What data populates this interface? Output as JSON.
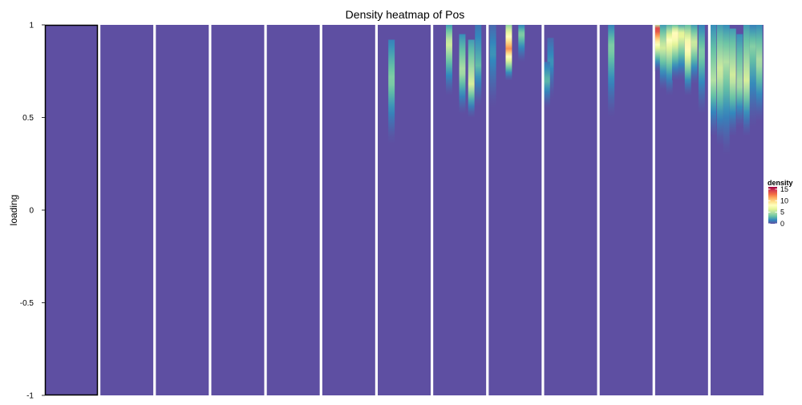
{
  "chart_data": {
    "type": "heatmap",
    "title": "Density heatmap of Pos",
    "xlabel": "",
    "ylabel": "loading",
    "ylim": [
      -1,
      1
    ],
    "y_ticks": [
      {
        "value": 1,
        "label": "1"
      },
      {
        "value": 0.5,
        "label": "0.5"
      },
      {
        "value": 0,
        "label": "0"
      },
      {
        "value": -0.5,
        "label": "-0.5"
      },
      {
        "value": -1,
        "label": "-1"
      }
    ],
    "panel_count": 13,
    "first_panel_outlined": true,
    "background_density": 0,
    "colorscale": [
      "#5E4FA2",
      "#3288BD",
      "#66C2A5",
      "#ABDDA4",
      "#E6F598",
      "#FFFFBF",
      "#FEE08B",
      "#FDAE61",
      "#F46D43",
      "#D53E4F",
      "#9E0142"
    ],
    "legend": {
      "title": "density",
      "position": "right",
      "range": [
        0,
        16
      ],
      "ticks": [
        {
          "value": 0,
          "label": "0"
        },
        {
          "value": 5,
          "label": "5"
        },
        {
          "value": 10,
          "label": "10"
        },
        {
          "value": 15,
          "label": "15"
        }
      ]
    },
    "panels": [
      {
        "index": 1,
        "hotspots": []
      },
      {
        "index": 2,
        "hotspots": []
      },
      {
        "index": 3,
        "hotspots": []
      },
      {
        "index": 4,
        "hotspots": []
      },
      {
        "index": 5,
        "hotspots": []
      },
      {
        "index": 6,
        "hotspots": []
      },
      {
        "index": 7,
        "hotspots": [
          {
            "pos": 0.26,
            "y_top": 0.92,
            "y_bottom": 0.36,
            "peak_y": 0.7,
            "peak": 4
          }
        ]
      },
      {
        "index": 8,
        "hotspots": [
          {
            "pos": 0.3,
            "y_top": 1.0,
            "y_bottom": 0.62,
            "peak_y": 0.9,
            "peak": 6
          },
          {
            "pos": 0.55,
            "y_top": 0.95,
            "y_bottom": 0.52,
            "peak_y": 0.75,
            "peak": 5
          },
          {
            "pos": 0.72,
            "y_top": 0.92,
            "y_bottom": 0.5,
            "peak_y": 0.68,
            "peak": 6
          },
          {
            "pos": 0.85,
            "y_top": 1.0,
            "y_bottom": 0.56,
            "peak_y": 0.78,
            "peak": 3
          }
        ]
      },
      {
        "index": 9,
        "hotspots": [
          {
            "pos": 0.08,
            "y_top": 1.0,
            "y_bottom": 0.55,
            "peak_y": 0.85,
            "peak": 2
          },
          {
            "pos": 0.38,
            "y_top": 1.0,
            "y_bottom": 0.7,
            "peak_y": 0.87,
            "peak": 12
          },
          {
            "pos": 0.62,
            "y_top": 1.0,
            "y_bottom": 0.8,
            "peak_y": 0.95,
            "peak": 4
          }
        ]
      },
      {
        "index": 10,
        "hotspots": [
          {
            "pos": 0.12,
            "y_top": 0.93,
            "y_bottom": 0.6,
            "peak_y": 0.8,
            "peak": 2
          },
          {
            "pos": 0.05,
            "y_top": 0.8,
            "y_bottom": 0.55,
            "peak_y": 0.7,
            "peak": 3
          }
        ]
      },
      {
        "index": 11,
        "hotspots": [
          {
            "pos": 0.22,
            "y_top": 1.0,
            "y_bottom": 0.5,
            "peak_y": 0.88,
            "peak": 4
          }
        ]
      },
      {
        "index": 12,
        "hotspots": [
          {
            "pos": 0.05,
            "y_top": 1.0,
            "y_bottom": 0.75,
            "peak_y": 0.98,
            "peak": 15
          },
          {
            "pos": 0.15,
            "y_top": 1.0,
            "y_bottom": 0.65,
            "peak_y": 0.88,
            "peak": 6
          },
          {
            "pos": 0.27,
            "y_top": 1.0,
            "y_bottom": 0.62,
            "peak_y": 0.92,
            "peak": 8
          },
          {
            "pos": 0.38,
            "y_top": 1.0,
            "y_bottom": 0.7,
            "peak_y": 0.95,
            "peak": 9
          },
          {
            "pos": 0.5,
            "y_top": 1.0,
            "y_bottom": 0.7,
            "peak_y": 0.95,
            "peak": 7
          },
          {
            "pos": 0.62,
            "y_top": 1.0,
            "y_bottom": 0.62,
            "peak_y": 0.88,
            "peak": 9
          },
          {
            "pos": 0.74,
            "y_top": 1.0,
            "y_bottom": 0.68,
            "peak_y": 0.9,
            "peak": 6
          },
          {
            "pos": 0.88,
            "y_top": 1.0,
            "y_bottom": 0.52,
            "peak_y": 0.85,
            "peak": 4
          }
        ]
      },
      {
        "index": 13,
        "hotspots": [
          {
            "pos": 0.05,
            "y_top": 1.0,
            "y_bottom": 0.4,
            "peak_y": 0.7,
            "peak": 5
          },
          {
            "pos": 0.18,
            "y_top": 1.0,
            "y_bottom": 0.35,
            "peak_y": 0.75,
            "peak": 6
          },
          {
            "pos": 0.3,
            "y_top": 1.0,
            "y_bottom": 0.3,
            "peak_y": 0.8,
            "peak": 5
          },
          {
            "pos": 0.42,
            "y_top": 0.98,
            "y_bottom": 0.4,
            "peak_y": 0.72,
            "peak": 6
          },
          {
            "pos": 0.55,
            "y_top": 0.95,
            "y_bottom": 0.45,
            "peak_y": 0.68,
            "peak": 5
          },
          {
            "pos": 0.68,
            "y_top": 1.0,
            "y_bottom": 0.4,
            "peak_y": 0.7,
            "peak": 6
          },
          {
            "pos": 0.8,
            "y_top": 1.0,
            "y_bottom": 0.45,
            "peak_y": 0.88,
            "peak": 4
          },
          {
            "pos": 0.92,
            "y_top": 1.0,
            "y_bottom": 0.48,
            "peak_y": 0.8,
            "peak": 5
          }
        ]
      }
    ]
  }
}
